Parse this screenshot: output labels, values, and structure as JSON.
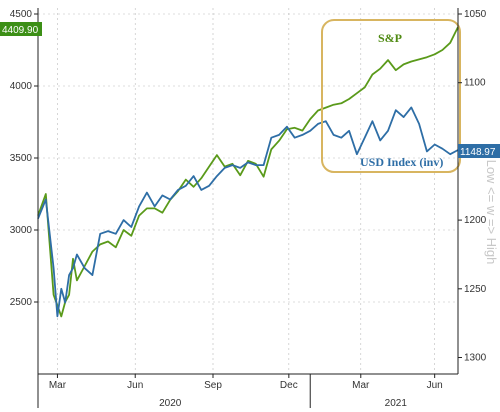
{
  "chart_data": {
    "type": "line",
    "title": "",
    "left_axis": {
      "range": [
        2000,
        4500
      ],
      "ticks": [
        2500,
        3000,
        3500,
        4000,
        4500
      ],
      "labels": [
        "2500",
        "3000",
        "3500",
        "4000",
        "4500"
      ]
    },
    "right_axis": {
      "range": [
        1050,
        1312
      ],
      "inverted": true,
      "ticks": [
        1050,
        1100,
        1150,
        1200,
        1250,
        1300
      ],
      "labels": [
        "1050",
        "1100",
        "1150",
        "1200",
        "1250",
        "1300"
      ],
      "title": "Low <= w => High"
    },
    "x_axis": {
      "month_ticks": [
        {
          "label": "Mar",
          "t": 0.05
        },
        {
          "label": "Jun",
          "t": 0.25
        },
        {
          "label": "Sep",
          "t": 0.45
        },
        {
          "label": "Dec",
          "t": 0.645
        },
        {
          "label": "Mar",
          "t": 0.83
        },
        {
          "label": "Jun",
          "t": 1.02
        }
      ],
      "year_labels": [
        {
          "label": "2020",
          "t": 0.34
        },
        {
          "label": "2021",
          "t": 0.92
        }
      ]
    },
    "series": [
      {
        "name": "S&P",
        "color": "#5a9a1a",
        "axis": "left",
        "t": [
          0.0,
          0.02,
          0.04,
          0.06,
          0.07,
          0.08,
          0.09,
          0.1,
          0.12,
          0.14,
          0.16,
          0.18,
          0.2,
          0.22,
          0.24,
          0.26,
          0.28,
          0.3,
          0.32,
          0.34,
          0.36,
          0.38,
          0.4,
          0.42,
          0.44,
          0.46,
          0.48,
          0.5,
          0.52,
          0.54,
          0.56,
          0.58,
          0.6,
          0.62,
          0.64,
          0.66,
          0.68,
          0.7,
          0.72,
          0.74,
          0.76,
          0.78,
          0.8,
          0.82,
          0.84,
          0.86,
          0.88,
          0.9,
          0.92,
          0.94,
          0.96,
          0.98,
          1.0,
          1.02,
          1.04,
          1.06,
          1.08
        ],
        "values": [
          3100,
          3250,
          2550,
          2400,
          2500,
          2550,
          2800,
          2650,
          2750,
          2850,
          2900,
          2920,
          2880,
          3000,
          2960,
          3100,
          3150,
          3150,
          3120,
          3210,
          3270,
          3350,
          3300,
          3360,
          3440,
          3520,
          3440,
          3460,
          3380,
          3480,
          3460,
          3370,
          3560,
          3620,
          3700,
          3710,
          3690,
          3770,
          3830,
          3850,
          3870,
          3880,
          3910,
          3950,
          3990,
          4080,
          4120,
          4180,
          4110,
          4150,
          4170,
          4185,
          4200,
          4220,
          4250,
          4300,
          4410
        ]
      },
      {
        "name": "USD Index (inv)",
        "color": "#2e6ea6",
        "axis": "right",
        "t": [
          0.0,
          0.02,
          0.04,
          0.05,
          0.06,
          0.07,
          0.08,
          0.09,
          0.1,
          0.12,
          0.14,
          0.16,
          0.18,
          0.2,
          0.22,
          0.24,
          0.26,
          0.28,
          0.3,
          0.32,
          0.34,
          0.36,
          0.38,
          0.4,
          0.42,
          0.44,
          0.46,
          0.48,
          0.5,
          0.52,
          0.54,
          0.56,
          0.58,
          0.6,
          0.62,
          0.64,
          0.66,
          0.68,
          0.7,
          0.72,
          0.74,
          0.76,
          0.78,
          0.8,
          0.82,
          0.84,
          0.86,
          0.88,
          0.9,
          0.92,
          0.94,
          0.96,
          0.98,
          1.0,
          1.02,
          1.04,
          1.06,
          1.08
        ],
        "values": [
          1199,
          1185,
          1235,
          1270,
          1250,
          1260,
          1240,
          1235,
          1225,
          1235,
          1240,
          1210,
          1208,
          1210,
          1200,
          1205,
          1190,
          1180,
          1190,
          1182,
          1185,
          1178,
          1175,
          1168,
          1178,
          1175,
          1168,
          1162,
          1160,
          1162,
          1158,
          1160,
          1160,
          1140,
          1138,
          1132,
          1140,
          1138,
          1135,
          1130,
          1128,
          1138,
          1140,
          1135,
          1152,
          1140,
          1128,
          1142,
          1135,
          1120,
          1125,
          1118,
          1130,
          1150,
          1145,
          1148,
          1152,
          1149
        ]
      }
    ],
    "annotations": [
      "S&P",
      "USD Index (inv)"
    ],
    "value_badges": [
      {
        "text": "4409.90",
        "series": "S&P"
      },
      {
        "text": "1148.97",
        "series": "USD Index (inv)"
      }
    ]
  }
}
